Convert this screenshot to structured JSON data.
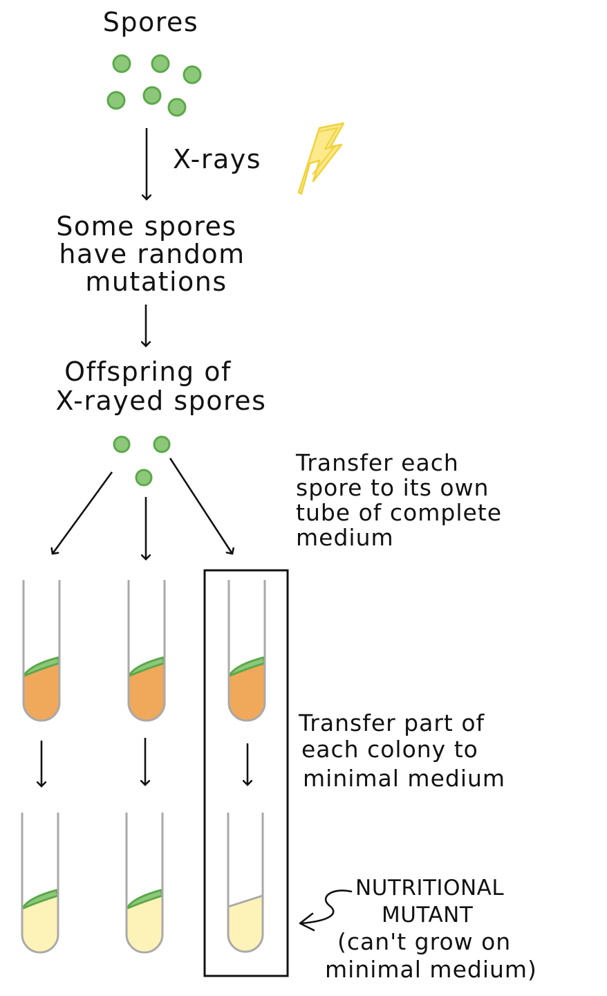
{
  "labels": {
    "spores": "Spores",
    "xrays": "X-rays",
    "mutations": [
      "Some spores",
      "have random",
      "mutations"
    ],
    "offspring": [
      "Offspring of",
      "X-rayed spores"
    ],
    "transfer_complete": [
      "Transfer each",
      "spore to its own",
      "tube of complete",
      "medium"
    ],
    "transfer_minimal": [
      "Transfer part of",
      "each colony to",
      "minimal medium"
    ],
    "mutant": [
      "NUTRITIONAL",
      "MUTANT",
      "(can't grow on",
      "minimal medium)"
    ]
  },
  "colors": {
    "spore_fill": "#8dc87a",
    "spore_stroke": "#5ba84a",
    "lightning_fill": "#fbe98a",
    "lightning_stroke": "#f0d23c",
    "complete_medium": "#f0a85a",
    "minimal_medium": "#fdf2b8",
    "tube_outline": "#a9a9a9",
    "ink": "#111111"
  },
  "icons": {
    "radiation": "lightning-bolt-icon",
    "spore": "spore-icon"
  },
  "tubes": {
    "complete_medium_growth": [
      true,
      true,
      true
    ],
    "minimal_medium_growth": [
      true,
      true,
      false
    ]
  }
}
